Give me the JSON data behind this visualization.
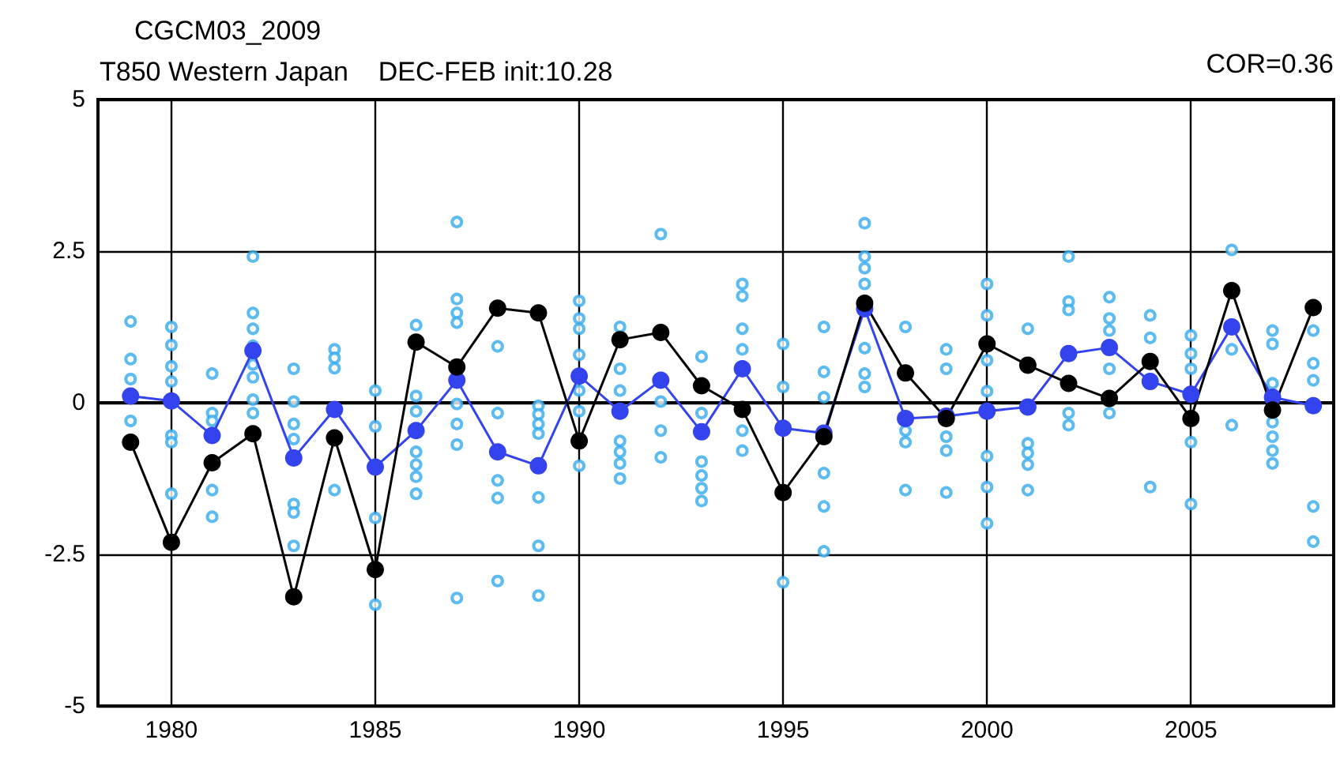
{
  "chart_data": {
    "type": "line",
    "title": "CGCM03_2009",
    "subtitle": "T850 Western Japan    DEC-FEB init:10.28",
    "annotations": [
      "COR=0.36"
    ],
    "x": [
      1979,
      1980,
      1981,
      1982,
      1983,
      1984,
      1985,
      1986,
      1987,
      1988,
      1989,
      1990,
      1991,
      1992,
      1993,
      1994,
      1995,
      1996,
      1997,
      1998,
      1999,
      2000,
      2001,
      2002,
      2003,
      2004,
      2005,
      2006,
      2007,
      2008
    ],
    "series": [
      {
        "type": "scatter",
        "color": "#33aaee",
        "x": [
          1979,
          1979,
          1979,
          1979,
          1980,
          1980,
          1980,
          1980,
          1980,
          1980,
          1980,
          1981,
          1981,
          1981,
          1981,
          1981,
          1982,
          1982,
          1982,
          1982,
          1982,
          1982,
          1982,
          1982,
          1983,
          1983,
          1983,
          1983,
          1983,
          1983,
          1983,
          1984,
          1984,
          1984,
          1984,
          1985,
          1985,
          1985,
          1985,
          1986,
          1986,
          1986,
          1986,
          1986,
          1986,
          1986,
          1987,
          1987,
          1987,
          1987,
          1987,
          1987,
          1987,
          1987,
          1988,
          1988,
          1988,
          1988,
          1988,
          1989,
          1989,
          1989,
          1989,
          1989,
          1989,
          1989,
          1990,
          1990,
          1990,
          1990,
          1990,
          1990,
          1990,
          1991,
          1991,
          1991,
          1991,
          1991,
          1991,
          1991,
          1992,
          1992,
          1992,
          1992,
          1993,
          1993,
          1993,
          1993,
          1993,
          1993,
          1994,
          1994,
          1994,
          1994,
          1994,
          1994,
          1995,
          1995,
          1995,
          1996,
          1996,
          1996,
          1996,
          1996,
          1996,
          1997,
          1997,
          1997,
          1997,
          1997,
          1997,
          1997,
          1998,
          1998,
          1998,
          1998,
          1999,
          1999,
          1999,
          1999,
          1999,
          2000,
          2000,
          2000,
          2000,
          2000,
          2000,
          2000,
          2001,
          2001,
          2001,
          2001,
          2001,
          2002,
          2002,
          2002,
          2002,
          2002,
          2003,
          2003,
          2003,
          2003,
          2003,
          2004,
          2004,
          2004,
          2005,
          2005,
          2005,
          2005,
          2005,
          2006,
          2006,
          2006,
          2007,
          2007,
          2007,
          2007,
          2007,
          2007,
          2007,
          2008,
          2008,
          2008,
          2008,
          2008
        ],
        "values": [
          1.34,
          0.72,
          0.39,
          -0.3,
          1.25,
          0.95,
          0.6,
          0.35,
          -0.54,
          -0.65,
          -1.5,
          0.48,
          -0.17,
          -0.3,
          -1.44,
          -1.88,
          2.41,
          1.48,
          1.22,
          0.94,
          0.63,
          0.42,
          0.05,
          -0.17,
          0.56,
          0.02,
          -0.35,
          -0.6,
          -1.67,
          -1.81,
          -2.36,
          0.88,
          0.74,
          0.57,
          -1.44,
          0.2,
          -0.39,
          -1.9,
          -3.33,
          1.28,
          0.11,
          -0.14,
          -0.81,
          -1.02,
          -1.22,
          -1.5,
          2.98,
          1.71,
          1.48,
          1.32,
          -0.02,
          -0.35,
          -0.69,
          -3.22,
          0.93,
          -0.17,
          -1.28,
          -1.57,
          -2.94,
          -0.05,
          -0.19,
          -0.35,
          -0.51,
          -1.56,
          -2.36,
          -3.18,
          1.68,
          1.39,
          1.22,
          0.79,
          0.2,
          -0.14,
          -1.04,
          1.25,
          0.56,
          0.2,
          -0.63,
          -0.81,
          -1.0,
          -1.25,
          2.78,
          0.02,
          -0.46,
          -0.9,
          0.76,
          -0.17,
          -0.97,
          -1.2,
          -1.41,
          -1.62,
          1.96,
          1.76,
          1.22,
          0.88,
          -0.46,
          -0.79,
          0.97,
          0.26,
          -2.96,
          1.25,
          0.51,
          0.09,
          -1.16,
          -1.71,
          -2.45,
          2.96,
          2.41,
          2.22,
          1.96,
          0.9,
          0.48,
          0.26,
          1.25,
          -0.46,
          -0.65,
          -1.44,
          0.88,
          0.56,
          -0.56,
          -0.79,
          -1.48,
          1.96,
          1.44,
          0.7,
          0.19,
          -0.88,
          -1.39,
          -1.99,
          1.22,
          -0.67,
          -0.83,
          -1.02,
          -1.44,
          2.41,
          1.67,
          1.53,
          -0.17,
          -0.37,
          1.74,
          1.39,
          1.19,
          0.56,
          -0.17,
          1.44,
          1.07,
          -1.39,
          1.11,
          0.81,
          0.56,
          -0.65,
          -1.67,
          2.52,
          0.88,
          -0.37,
          1.19,
          0.97,
          0.32,
          -0.32,
          -0.56,
          -0.79,
          -1.0,
          1.19,
          0.65,
          0.37,
          -1.71,
          -2.29
        ]
      },
      {
        "type": "line",
        "color": "#3344ee",
        "values": [
          0.11,
          0.03,
          -0.54,
          0.86,
          -0.91,
          -0.11,
          -1.06,
          -0.46,
          0.37,
          -0.81,
          -1.04,
          0.44,
          -0.14,
          0.37,
          -0.48,
          0.56,
          -0.42,
          -0.5,
          1.55,
          -0.26,
          -0.22,
          -0.14,
          -0.07,
          0.81,
          0.91,
          0.35,
          0.14,
          1.25,
          0.09,
          -0.05
        ]
      },
      {
        "type": "line",
        "color": "#000000",
        "values": [
          -0.65,
          -2.3,
          -0.99,
          -0.51,
          -3.2,
          -0.58,
          -2.75,
          1.0,
          0.59,
          1.56,
          1.48,
          -0.63,
          1.04,
          1.16,
          0.28,
          -0.11,
          -1.48,
          -0.56,
          1.64,
          0.49,
          -0.26,
          0.97,
          0.62,
          0.32,
          0.07,
          0.68,
          -0.26,
          1.85,
          -0.12,
          1.57
        ]
      }
    ],
    "xlim": [
      1978.2,
      2008.5
    ],
    "xticks": [
      1980,
      1985,
      1990,
      1995,
      2000,
      2005
    ],
    "ylim": [
      -5,
      5
    ],
    "yticks": [
      -5,
      -2.5,
      0,
      2.5,
      5
    ],
    "grid": true,
    "marker": "circle",
    "line_style": "solid"
  }
}
